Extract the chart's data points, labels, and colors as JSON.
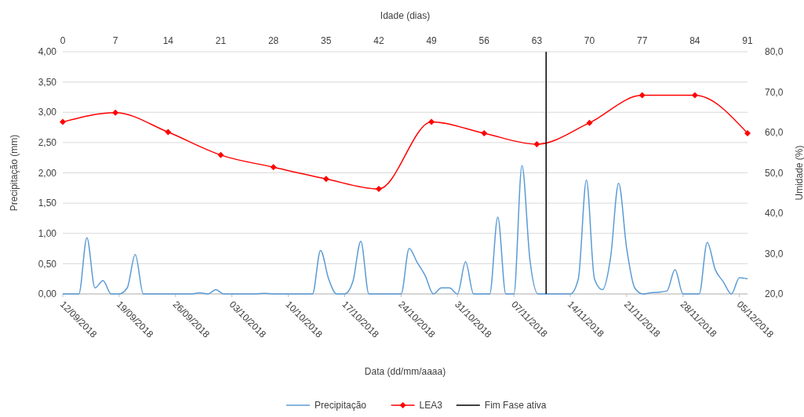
{
  "chart_data": {
    "type": "line",
    "xlabel": "Data (dd/mm/aaaa)",
    "x2label": "Idade (dias)",
    "ylabel": "Precipitação (mm)",
    "y2label": "Umidade (%)",
    "xlim": [
      "2018-09-12",
      "2018-12-06"
    ],
    "xticks": [
      {
        "value": "2018-09-12",
        "label": "12/09/2018"
      },
      {
        "value": "2018-09-19",
        "label": "19/09/2018"
      },
      {
        "value": "2018-09-26",
        "label": "26/09/2018"
      },
      {
        "value": "2018-10-03",
        "label": "03/10/2018"
      },
      {
        "value": "2018-10-10",
        "label": "10/10/2018"
      },
      {
        "value": "2018-10-17",
        "label": "17/10/2018"
      },
      {
        "value": "2018-10-24",
        "label": "24/10/2018"
      },
      {
        "value": "2018-10-31",
        "label": "31/10/2018"
      },
      {
        "value": "2018-11-07",
        "label": "07/11/2018"
      },
      {
        "value": "2018-11-14",
        "label": "14/11/2018"
      },
      {
        "value": "2018-11-21",
        "label": "21/11/2018"
      },
      {
        "value": "2018-11-28",
        "label": "28/11/2018"
      },
      {
        "value": "2018-12-05",
        "label": "05/12/2018"
      }
    ],
    "x2lim": [
      0,
      91
    ],
    "x2ticks": [
      0,
      7,
      14,
      21,
      28,
      35,
      42,
      49,
      56,
      63,
      70,
      77,
      84,
      91
    ],
    "ylim": [
      0,
      4
    ],
    "yticks": [
      {
        "value": 0,
        "label": "0,00"
      },
      {
        "value": 0.5,
        "label": "0,50"
      },
      {
        "value": 1,
        "label": "1,00"
      },
      {
        "value": 1.5,
        "label": "1,50"
      },
      {
        "value": 2,
        "label": "2,00"
      },
      {
        "value": 2.5,
        "label": "2,50"
      },
      {
        "value": 3,
        "label": "3,00"
      },
      {
        "value": 3.5,
        "label": "3,50"
      },
      {
        "value": 4,
        "label": "4,00"
      }
    ],
    "y2lim": [
      20,
      80
    ],
    "y2ticks": [
      {
        "value": 20,
        "label": "20,0"
      },
      {
        "value": 30,
        "label": "30,0"
      },
      {
        "value": 40,
        "label": "40,0"
      },
      {
        "value": 50,
        "label": "50,0"
      },
      {
        "value": 60,
        "label": "60,0"
      },
      {
        "value": 70,
        "label": "70,0"
      },
      {
        "value": 80,
        "label": "80,0"
      }
    ],
    "grid": "y",
    "legend": "bottom",
    "series": [
      {
        "name": "Precipitação",
        "color": "#5b9bd5",
        "marker": "none",
        "x": [
          "2018-09-12",
          "2018-09-13",
          "2018-09-14",
          "2018-09-15",
          "2018-09-16",
          "2018-09-17",
          "2018-09-18",
          "2018-09-19",
          "2018-09-20",
          "2018-09-21",
          "2018-09-22",
          "2018-09-23",
          "2018-09-24",
          "2018-09-25",
          "2018-09-26",
          "2018-09-27",
          "2018-09-28",
          "2018-09-29",
          "2018-09-30",
          "2018-10-01",
          "2018-10-02",
          "2018-10-03",
          "2018-10-04",
          "2018-10-05",
          "2018-10-06",
          "2018-10-07",
          "2018-10-08",
          "2018-10-09",
          "2018-10-10",
          "2018-10-11",
          "2018-10-12",
          "2018-10-13",
          "2018-10-14",
          "2018-10-15",
          "2018-10-16",
          "2018-10-17",
          "2018-10-18",
          "2018-10-19",
          "2018-10-20",
          "2018-10-21",
          "2018-10-22",
          "2018-10-23",
          "2018-10-24",
          "2018-10-25",
          "2018-10-26",
          "2018-10-27",
          "2018-10-28",
          "2018-10-29",
          "2018-10-30",
          "2018-10-31",
          "2018-11-01",
          "2018-11-02",
          "2018-11-03",
          "2018-11-04",
          "2018-11-05",
          "2018-11-06",
          "2018-11-07",
          "2018-11-08",
          "2018-11-09",
          "2018-11-10",
          "2018-11-11",
          "2018-11-12",
          "2018-11-13",
          "2018-11-14",
          "2018-11-15",
          "2018-11-16",
          "2018-11-17",
          "2018-11-18",
          "2018-11-19",
          "2018-11-20",
          "2018-11-21",
          "2018-11-22",
          "2018-11-23",
          "2018-11-24",
          "2018-11-25",
          "2018-11-26",
          "2018-11-27",
          "2018-11-28",
          "2018-11-29",
          "2018-11-30",
          "2018-12-01",
          "2018-12-02",
          "2018-12-03",
          "2018-12-04",
          "2018-12-05",
          "2018-12-06"
        ],
        "values": [
          0,
          0,
          0,
          0.93,
          0.1,
          0.22,
          0,
          0,
          0.1,
          0.65,
          0,
          0,
          0,
          0,
          0,
          0,
          0,
          0.02,
          0,
          0.07,
          0,
          0,
          0,
          0,
          0,
          0.01,
          0,
          0,
          0,
          0,
          0,
          0,
          0.72,
          0.25,
          0,
          0,
          0.2,
          0.87,
          0,
          0,
          0,
          0,
          0,
          0.75,
          0.52,
          0.3,
          0,
          0.1,
          0.1,
          0,
          0.53,
          0,
          0,
          0,
          1.27,
          0,
          0,
          2.12,
          0.55,
          0,
          0,
          0,
          0,
          0,
          0.25,
          1.88,
          0.25,
          0.07,
          0.6,
          1.83,
          0.75,
          0.1,
          0,
          0.02,
          0.03,
          0.05,
          0.4,
          0,
          0,
          0,
          0.85,
          0.4,
          0.2,
          0,
          0.27,
          0.25
        ]
      },
      {
        "name": "LEA3",
        "color": "#ff0000",
        "marker": "diamond",
        "axis": "y2",
        "x": [
          "2018-09-12",
          "2018-09-18T12:55",
          "2018-09-25T01:51",
          "2018-10-01T14:46",
          "2018-10-08T03:42",
          "2018-10-14T16:37",
          "2018-10-21T05:32",
          "2018-10-27T18:28",
          "2018-11-03T07:23",
          "2018-11-09T20:18",
          "2018-11-16T09:14",
          "2018-11-22T22:09",
          "2018-11-29T11:05",
          "2018-12-06"
        ],
        "values": [
          62.6,
          64.9,
          60.1,
          54.4,
          51.4,
          48.5,
          46.0,
          62.6,
          59.8,
          57.1,
          62.4,
          69.2,
          69.2,
          59.8
        ]
      }
    ],
    "ref_lines": [
      {
        "axis": "x",
        "value": "2018-11-11",
        "label": "Fim Fase ativa",
        "color": "#000000",
        "line_style": "solid"
      }
    ]
  }
}
